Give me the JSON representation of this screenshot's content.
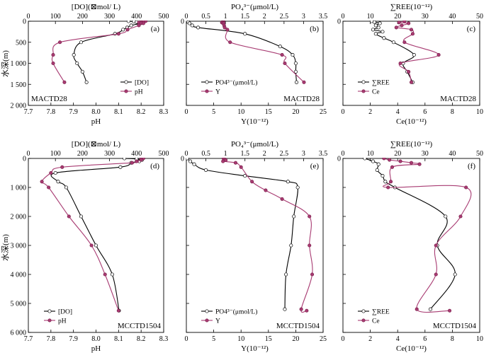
{
  "y_axis_label": "水深(m)",
  "chart_data": [
    {
      "type": "line",
      "panel_label": "(a)",
      "station": "MACTD28",
      "top_axis": {
        "label": "[DO](⊠mol/ L)",
        "ticks": [
          "0",
          "100",
          "200",
          "300",
          "400",
          "500"
        ],
        "lim": [
          0,
          500
        ]
      },
      "bottom_axis": {
        "label": "pH",
        "ticks": [
          "7.7",
          "7.8",
          "7.9",
          "8.0",
          "8.1",
          "8.2",
          "8.3"
        ],
        "lim": [
          7.7,
          8.3
        ]
      },
      "depth_axis": {
        "ticks": [
          "0",
          "500",
          "1 000",
          "1 500",
          "2 000"
        ],
        "lim": [
          0,
          2000
        ]
      },
      "series": [
        {
          "name": "[DO]",
          "axis": "top",
          "color": "#000000",
          "marker": "open",
          "points": [
            [
              370,
              0
            ],
            [
              390,
              10
            ],
            [
              400,
              20
            ],
            [
              410,
              30
            ],
            [
              420,
              40
            ],
            [
              415,
              50
            ],
            [
              380,
              100
            ],
            [
              365,
              150
            ],
            [
              350,
              200
            ],
            [
              320,
              300
            ],
            [
              195,
              500
            ],
            [
              168,
              800
            ],
            [
              180,
              1000
            ],
            [
              200,
              1200
            ],
            [
              215,
              1450
            ]
          ]
        },
        {
          "name": "pH",
          "axis": "bottom",
          "color": "#a83b72",
          "marker": "filled",
          "points": [
            [
              8.22,
              0
            ],
            [
              8.21,
              10
            ],
            [
              8.2,
              20
            ],
            [
              8.19,
              30
            ],
            [
              8.2,
              40
            ],
            [
              8.21,
              50
            ],
            [
              8.19,
              100
            ],
            [
              8.14,
              200
            ],
            [
              8.1,
              300
            ],
            [
              7.84,
              500
            ],
            [
              7.81,
              800
            ],
            [
              7.81,
              1000
            ],
            [
              7.86,
              1450
            ]
          ]
        }
      ]
    },
    {
      "type": "line",
      "panel_label": "(b)",
      "station": "MACTD28",
      "top_axis": {
        "label": "PO₄³⁻(μmol/L)",
        "ticks": [
          "0",
          "0.5",
          "1",
          "1.5",
          "2",
          "2.5",
          "3",
          "3.5"
        ],
        "lim": [
          0,
          3.5
        ]
      },
      "bottom_axis": {
        "label": "Y(10⁻¹²)",
        "ticks": [
          "0",
          "5",
          "10",
          "15",
          "20",
          "25"
        ],
        "lim": [
          0,
          25
        ]
      },
      "depth_axis": {
        "ticks": [
          "0",
          "500",
          "1 000",
          "1 500",
          "2 000"
        ],
        "lim": [
          0,
          2000
        ]
      },
      "series": [
        {
          "name": "PO4³⁻(μmol/L)",
          "axis": "top",
          "color": "#000000",
          "marker": "open",
          "points": [
            [
              0.02,
              0
            ],
            [
              0.03,
              10
            ],
            [
              0.05,
              20
            ],
            [
              0.08,
              50
            ],
            [
              0.15,
              100
            ],
            [
              0.3,
              150
            ],
            [
              1.5,
              300
            ],
            [
              2.4,
              600
            ],
            [
              2.72,
              800
            ],
            [
              2.8,
              1000
            ],
            [
              2.8,
              1200
            ],
            [
              2.82,
              1450
            ]
          ]
        },
        {
          "name": "Y",
          "axis": "bottom",
          "color": "#a83b72",
          "marker": "filled",
          "points": [
            [
              6.8,
              0
            ],
            [
              6.7,
              10
            ],
            [
              6.6,
              20
            ],
            [
              6.5,
              30
            ],
            [
              6.6,
              40
            ],
            [
              6.8,
              50
            ],
            [
              6.9,
              100
            ],
            [
              7.0,
              150
            ],
            [
              7.5,
              200
            ],
            [
              8.0,
              500
            ],
            [
              17.5,
              800
            ],
            [
              18.0,
              1000
            ],
            [
              21.5,
              1450
            ]
          ]
        }
      ]
    },
    {
      "type": "line",
      "panel_label": "(c)",
      "station": "MACTD28",
      "top_axis": {
        "label": "∑REE(10⁻¹²)",
        "ticks": [
          "0",
          "10",
          "20",
          "30",
          "40",
          "50"
        ],
        "lim": [
          0,
          50
        ]
      },
      "bottom_axis": {
        "label": "Ce(10⁻¹²)",
        "ticks": [
          "0",
          "2",
          "4",
          "6",
          "8",
          "10"
        ],
        "lim": [
          0,
          10
        ]
      },
      "depth_axis": {
        "ticks": [
          "0",
          "500",
          "1 000",
          "1 500",
          "2 000"
        ],
        "lim": [
          0,
          2000
        ]
      },
      "series": [
        {
          "name": "∑REE",
          "axis": "top",
          "color": "#000000",
          "marker": "open",
          "points": [
            [
              10.5,
              0
            ],
            [
              11.5,
              20
            ],
            [
              13.5,
              50
            ],
            [
              12.0,
              100
            ],
            [
              13.0,
              150
            ],
            [
              11.0,
              200
            ],
            [
              14.5,
              250
            ],
            [
              12.0,
              300
            ],
            [
              15.0,
              400
            ],
            [
              18.5,
              500
            ],
            [
              26.0,
              800
            ],
            [
              22.0,
              1000
            ],
            [
              23.5,
              1200
            ],
            [
              25.5,
              1450
            ]
          ]
        },
        {
          "name": "Ce",
          "axis": "bottom",
          "color": "#a83b72",
          "marker": "filled",
          "points": [
            [
              4.5,
              0
            ],
            [
              4.1,
              30
            ],
            [
              4.8,
              50
            ],
            [
              4.3,
              100
            ],
            [
              3.9,
              150
            ],
            [
              5.0,
              200
            ],
            [
              5.1,
              300
            ],
            [
              4.5,
              500
            ],
            [
              7.0,
              800
            ],
            [
              4.2,
              1000
            ],
            [
              4.8,
              1200
            ],
            [
              5.0,
              1450
            ]
          ]
        }
      ]
    },
    {
      "type": "line",
      "panel_label": "(d)",
      "station": "MCCTD1504",
      "top_axis": {
        "label": "[DO](⊠mol/ L)",
        "ticks": [
          "0",
          "100",
          "200",
          "300",
          "400",
          "500"
        ],
        "lim": [
          0,
          500
        ]
      },
      "bottom_axis": {
        "label": "pH",
        "ticks": [
          "7.7",
          "7.8",
          "7.9",
          "8.0",
          "8.1",
          "8.2",
          "8.3"
        ],
        "lim": [
          7.7,
          8.3
        ]
      },
      "depth_axis": {
        "ticks": [
          "0",
          "1 000",
          "2 000",
          "3 000",
          "4 000",
          "5 000",
          "6 000"
        ],
        "lim": [
          0,
          6000
        ]
      },
      "series": [
        {
          "name": "[DO]",
          "axis": "top",
          "color": "#000000",
          "marker": "open",
          "points": [
            [
              355,
              0
            ],
            [
              400,
              20
            ],
            [
              420,
              50
            ],
            [
              410,
              100
            ],
            [
              380,
              150
            ],
            [
              340,
              300
            ],
            [
              100,
              500
            ],
            [
              110,
              800
            ],
            [
              140,
              1000
            ],
            [
              195,
              2000
            ],
            [
              250,
              3000
            ],
            [
              310,
              4000
            ],
            [
              335,
              5250
            ]
          ]
        },
        {
          "name": "pH",
          "axis": "bottom",
          "color": "#a83b72",
          "marker": "filled",
          "points": [
            [
              8.21,
              0
            ],
            [
              8.2,
              20
            ],
            [
              8.2,
              50
            ],
            [
              8.18,
              100
            ],
            [
              8.16,
              150
            ],
            [
              7.85,
              300
            ],
            [
              7.8,
              500
            ],
            [
              7.76,
              800
            ],
            [
              7.79,
              1000
            ],
            [
              7.88,
              2000
            ],
            [
              7.98,
              3000
            ],
            [
              8.04,
              4000
            ],
            [
              8.1,
              5250
            ]
          ]
        }
      ]
    },
    {
      "type": "line",
      "panel_label": "(e)",
      "station": "MCCTD1504",
      "top_axis": {
        "label": "PO₄³⁻(μmol/L)",
        "ticks": [
          "0",
          "0.5",
          "1",
          "1.5",
          "2",
          "2.5",
          "3",
          "3.5"
        ],
        "lim": [
          0,
          3.5
        ]
      },
      "bottom_axis": {
        "label": "Y(10⁻¹²)",
        "ticks": [
          "0",
          "5",
          "10",
          "15",
          "20",
          "25"
        ],
        "lim": [
          0,
          25
        ]
      },
      "depth_axis": {
        "ticks": [
          "0",
          "1 000",
          "2 000",
          "3 000",
          "4 000",
          "5 000",
          "6 000"
        ],
        "lim": [
          0,
          6000
        ]
      },
      "series": [
        {
          "name": "PO4³⁻(μmol/L)",
          "axis": "top",
          "color": "#000000",
          "marker": "open",
          "points": [
            [
              0.02,
              0
            ],
            [
              0.1,
              100
            ],
            [
              0.2,
              200
            ],
            [
              0.5,
              400
            ],
            [
              1.5,
              600
            ],
            [
              2.6,
              800
            ],
            [
              2.85,
              1000
            ],
            [
              2.75,
              2000
            ],
            [
              2.68,
              3000
            ],
            [
              2.55,
              4000
            ],
            [
              2.52,
              5200
            ]
          ]
        },
        {
          "name": "Y",
          "axis": "bottom",
          "color": "#a83b72",
          "marker": "filled",
          "points": [
            [
              6.8,
              0
            ],
            [
              7.0,
              30
            ],
            [
              7.2,
              60
            ],
            [
              6.7,
              100
            ],
            [
              9.0,
              150
            ],
            [
              10.0,
              300
            ],
            [
              12.0,
              800
            ],
            [
              14.5,
              1100
            ],
            [
              17.5,
              1400
            ],
            [
              22.5,
              2000
            ],
            [
              22.5,
              3000
            ],
            [
              23.0,
              4000
            ],
            [
              21.0,
              5200
            ],
            [
              22.0,
              5250
            ]
          ]
        }
      ]
    },
    {
      "type": "line",
      "panel_label": "(f)",
      "station": "MCCTD1504",
      "top_axis": {
        "label": "∑REE(10⁻¹²)",
        "ticks": [
          "0",
          "10",
          "20",
          "30",
          "40",
          "50"
        ],
        "lim": [
          0,
          50
        ]
      },
      "bottom_axis": {
        "label": "Ce(10⁻¹²)",
        "ticks": [
          "0",
          "2",
          "4",
          "6",
          "8",
          "10"
        ],
        "lim": [
          0,
          10
        ]
      },
      "depth_axis": {
        "ticks": [
          "0",
          "1 000",
          "2 000",
          "3 000",
          "4 000",
          "5 000",
          "6 000"
        ],
        "lim": [
          0,
          6000
        ]
      },
      "series": [
        {
          "name": "∑REE",
          "axis": "top",
          "color": "#000000",
          "marker": "open",
          "points": [
            [
              8.0,
              0
            ],
            [
              11.0,
              100
            ],
            [
              13.0,
              200
            ],
            [
              12.5,
              400
            ],
            [
              14.5,
              600
            ],
            [
              15.5,
              800
            ],
            [
              19.0,
              1000
            ],
            [
              37.5,
              2000
            ],
            [
              34.5,
              3000
            ],
            [
              41.0,
              4000
            ],
            [
              32.0,
              5200
            ]
          ]
        },
        {
          "name": "Ce",
          "axis": "bottom",
          "color": "#a83b72",
          "marker": "filled",
          "points": [
            [
              3.0,
              0
            ],
            [
              3.4,
              50
            ],
            [
              4.2,
              100
            ],
            [
              5.0,
              150
            ],
            [
              5.6,
              200
            ],
            [
              3.6,
              300
            ],
            [
              3.5,
              800
            ],
            [
              3.3,
              1000
            ],
            [
              9.0,
              1000
            ],
            [
              8.6,
              2000
            ],
            [
              6.8,
              3000
            ],
            [
              6.8,
              4000
            ],
            [
              5.4,
              5200
            ],
            [
              7.8,
              5250
            ]
          ]
        }
      ]
    }
  ]
}
